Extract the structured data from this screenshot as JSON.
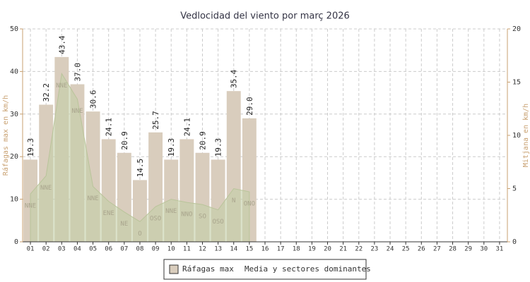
{
  "chart_data": {
    "type": "bar",
    "title": "Vedlocidad del viento por març 2026",
    "y_label": "Ráfagas max en km/h",
    "y2_label": "Mitjana en km/h",
    "categories": [
      "01",
      "02",
      "03",
      "04",
      "05",
      "06",
      "07",
      "08",
      "09",
      "10",
      "11",
      "12",
      "13",
      "14",
      "15",
      "16",
      "17",
      "18",
      "19",
      "20",
      "21",
      "22",
      "23",
      "24",
      "25",
      "26",
      "27",
      "28",
      "29",
      "30",
      "31"
    ],
    "series": [
      {
        "name": "Ráfagas max",
        "color": "#d9cdbd",
        "values": [
          19.3,
          32.2,
          43.4,
          37.0,
          30.6,
          24.1,
          20.9,
          14.5,
          25.7,
          19.3,
          24.1,
          20.9,
          19.3,
          35.4,
          29.0,
          null,
          null,
          null,
          null,
          null,
          null,
          null,
          null,
          null,
          null,
          null,
          null,
          null,
          null,
          null,
          null
        ],
        "value_labels": [
          "19.3",
          "32.2",
          "43.4",
          "37.0",
          "30.6",
          "24.1",
          "20.9",
          "14.5",
          "25.7",
          "19.3",
          "24.1",
          "20.9",
          "19.3",
          "35.4",
          "29.0",
          null,
          null,
          null,
          null,
          null,
          null,
          null,
          null,
          null,
          null,
          null,
          null,
          null,
          null,
          null,
          null
        ]
      },
      {
        "name": "Media y sectores dominantes",
        "color": "#c3cfa6",
        "axis": "y2",
        "values": [
          4.5,
          6.2,
          15.8,
          13.4,
          5.2,
          3.8,
          2.8,
          1.9,
          3.3,
          4.0,
          3.7,
          3.5,
          3.0,
          5.0,
          4.7,
          null,
          null,
          null,
          null,
          null,
          null,
          null,
          null,
          null,
          null,
          null,
          null,
          null,
          null,
          null,
          null
        ],
        "directions": [
          "NNE",
          "NNE",
          "NNE",
          "NNE",
          "NNE",
          "ENE",
          "NE",
          "O",
          "OSO",
          "NNE",
          "NNO",
          "SO",
          "OSO",
          "N",
          "ONO",
          null,
          null,
          null,
          null,
          null,
          null,
          null,
          null,
          null,
          null,
          null,
          null,
          null,
          null,
          null,
          null
        ]
      }
    ],
    "ylim": [
      0,
      50
    ],
    "yticks": [
      0,
      10,
      20,
      30,
      40,
      50
    ],
    "y2lim": [
      0,
      20
    ],
    "y2ticks": [
      0,
      5,
      10,
      15,
      20
    ],
    "grid": true,
    "legend": "bottom"
  }
}
